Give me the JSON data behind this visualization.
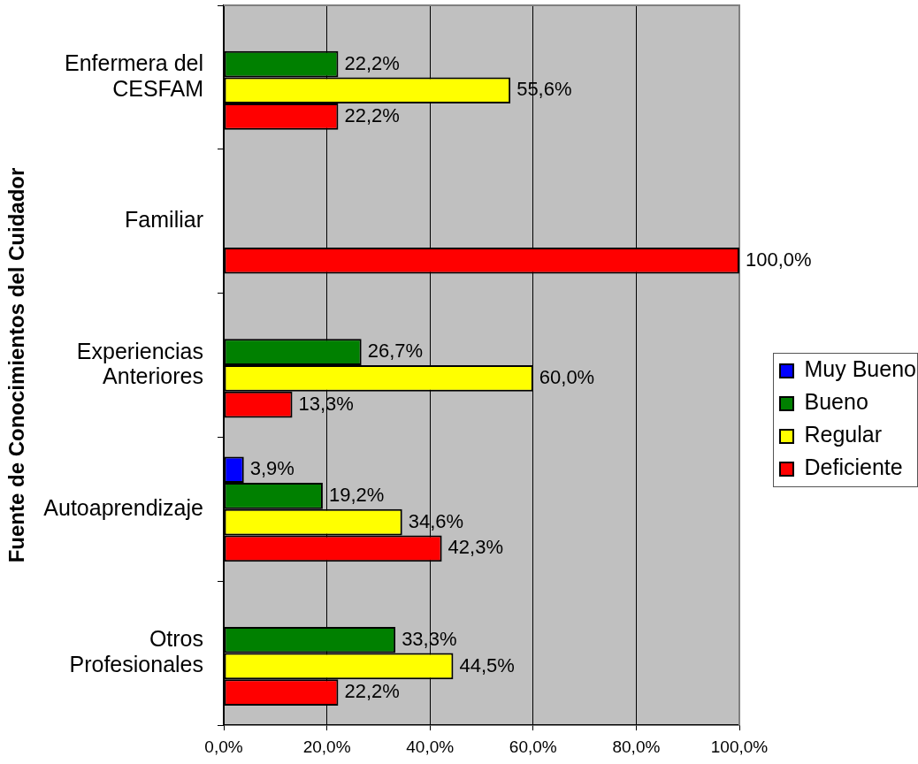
{
  "chart_data": {
    "type": "bar",
    "orientation": "horizontal",
    "ylabel": "Fuente de Conocimientos del Cuidador",
    "categories": [
      "Enfermera del CESFAM",
      "Familiar",
      "Experiencias Anteriores",
      "Autoaprendizaje",
      "Otros Profesionales"
    ],
    "series": [
      {
        "name": "Muy Bueno",
        "color": "#0000ff",
        "values": [
          null,
          null,
          null,
          3.9,
          null
        ],
        "value_labels": [
          null,
          null,
          null,
          "3,9%",
          null
        ]
      },
      {
        "name": "Bueno",
        "color": "#008000",
        "values": [
          22.2,
          null,
          26.7,
          19.2,
          33.3
        ],
        "value_labels": [
          "22,2%",
          null,
          "26,7%",
          "19,2%",
          "33,3%"
        ]
      },
      {
        "name": "Regular",
        "color": "#ffff00",
        "values": [
          55.6,
          null,
          60.0,
          34.6,
          44.5
        ],
        "value_labels": [
          "55,6%",
          null,
          "60,0%",
          "34,6%",
          "44,5%"
        ]
      },
      {
        "name": "Deficiente",
        "color": "#ff0000",
        "values": [
          22.2,
          100.0,
          13.3,
          42.3,
          22.2
        ],
        "value_labels": [
          "22,2%",
          "100,0%",
          "13,3%",
          "42,3%",
          "22,2%"
        ]
      }
    ],
    "xlim": [
      0,
      100
    ],
    "xticks": [
      {
        "value": 0,
        "label": "0,0%"
      },
      {
        "value": 20,
        "label": "20,0%"
      },
      {
        "value": 40,
        "label": "40,0%"
      },
      {
        "value": 60,
        "label": "60,0%"
      },
      {
        "value": 80,
        "label": "80,0%"
      },
      {
        "value": 100,
        "label": "100,0%"
      }
    ],
    "grid": "x",
    "legend": "right"
  }
}
